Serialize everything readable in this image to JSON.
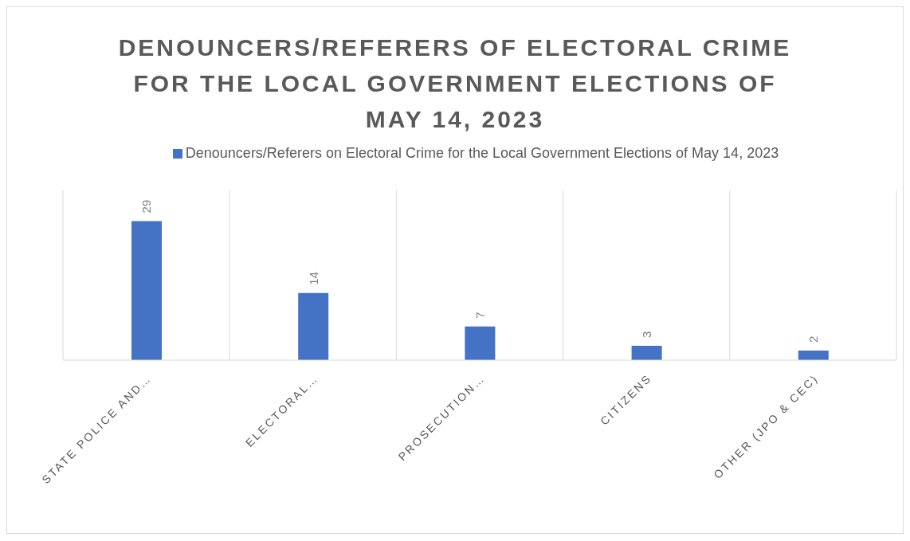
{
  "chart_data": {
    "type": "bar",
    "title": "DENOUNCERS/REFERERS OF ELECTORAL CRIME FOR THE LOCAL GOVERNMENT ELECTIONS OF MAY 14, 2023",
    "categories": [
      "STATE POLICE AND…",
      "ELECTORAL…",
      "PROSECUTION…",
      "CITIZENS",
      "OTHER (JPO & CEC)"
    ],
    "series": [
      {
        "name": "Denouncers/Referers on Electoral Crime for the Local Government Elections of May 14, 2023",
        "color": "#4472c4",
        "values": [
          29,
          14,
          7,
          3,
          2
        ]
      }
    ],
    "data_labels": true,
    "grid": "x",
    "legend": "top"
  }
}
